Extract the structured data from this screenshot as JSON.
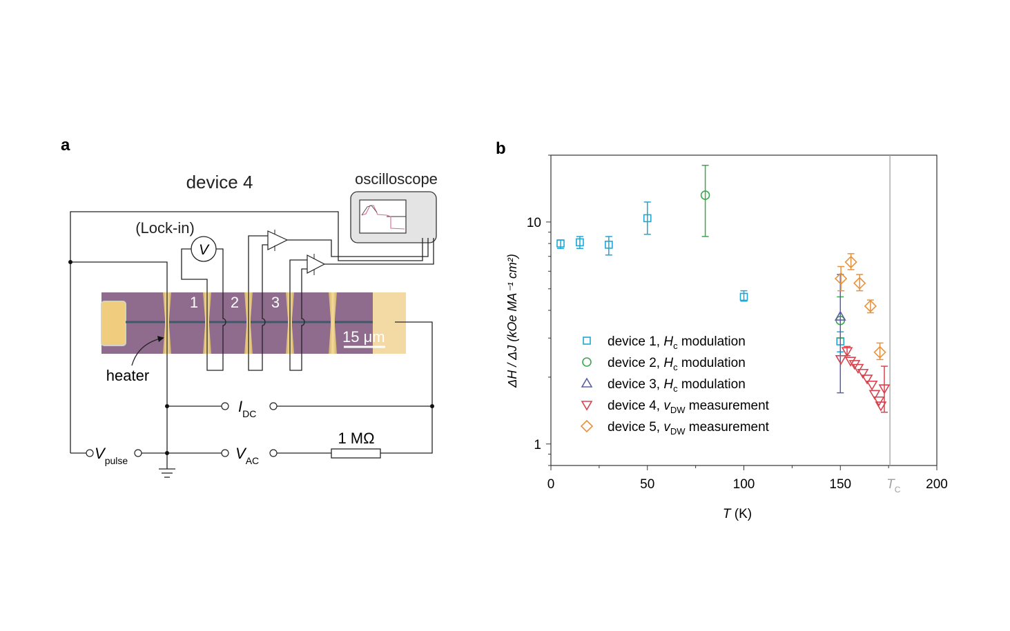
{
  "panel_a": {
    "label": "a",
    "title": "device 4",
    "lockin_label": "(Lock-in)",
    "voltmeter_symbol": "V",
    "oscilloscope_label": "oscilloscope",
    "contact_labels": [
      "1",
      "2",
      "3"
    ],
    "scale_bar_label": "15 μm",
    "heater_label": "heater",
    "idc": {
      "main": "I",
      "sub": "DC"
    },
    "vac": {
      "main": "V",
      "sub": "AC"
    },
    "vpulse": {
      "main": "V",
      "sub": "pulse"
    },
    "resistor_label": "1 MΩ",
    "colors": {
      "substrate": "#8f6b8d",
      "gold": "#f0cf8a"
    }
  },
  "chart_data": {
    "type": "scatter",
    "panel_label": "b",
    "xlabel": {
      "main": "T",
      "unit": " (K)"
    },
    "ylabel": "ΔH / ΔJ (kOe MA⁻¹ cm²)",
    "xlim": [
      0,
      200
    ],
    "ylim": [
      0.8,
      20
    ],
    "yscale": "log",
    "xticks": [
      0,
      50,
      100,
      150,
      200
    ],
    "xminor": [
      25,
      75,
      125,
      175
    ],
    "yticks": [
      1,
      10
    ],
    "tc": {
      "value": 175.7,
      "label_main": "T",
      "label_sub": "C",
      "color": "#a0a0a0"
    },
    "legend_position": "lower-left",
    "series": [
      {
        "name": "device 1, Hc modulation",
        "legend": {
          "prefix": "device 1, ",
          "var": "H",
          "sub": "c",
          "suffix": " modulation"
        },
        "marker": "square",
        "color": "#1ea6d6",
        "points": [
          [
            5,
            8.0,
            7.6,
            8.3
          ],
          [
            15,
            8.1,
            7.6,
            8.6
          ],
          [
            30,
            7.9,
            7.1,
            8.6
          ],
          [
            50,
            10.4,
            8.8,
            12.3
          ],
          [
            100,
            4.6,
            4.4,
            4.9
          ],
          [
            150,
            2.9,
            2.6,
            3.2
          ]
        ]
      },
      {
        "name": "device 2, Hc modulation",
        "legend": {
          "prefix": "device 2, ",
          "var": "H",
          "sub": "c",
          "suffix": " modulation"
        },
        "marker": "circle",
        "color": "#3aa94a",
        "points": [
          [
            80,
            13.2,
            8.6,
            18.0
          ],
          [
            150,
            3.6,
            3.0,
            4.6
          ]
        ]
      },
      {
        "name": "device 3, Hc modulation",
        "legend": {
          "prefix": "device 3, ",
          "var": "H",
          "sub": "c",
          "suffix": " modulation"
        },
        "marker": "triangle-up",
        "color": "#5b5ea6",
        "points": [
          [
            150,
            3.75,
            1.7,
            5.8
          ]
        ]
      },
      {
        "name": "device 4, vDW measurement",
        "legend": {
          "prefix": "device 4, ",
          "var": "v",
          "sub": "DW",
          "suffix": " measurement"
        },
        "marker": "triangle-down",
        "color": "#d8424e",
        "points": [
          [
            150.3,
            2.41,
            null,
            null
          ],
          [
            153.5,
            2.62,
            2.5,
            2.75
          ],
          [
            155.3,
            2.37,
            null,
            null
          ],
          [
            157.4,
            2.29,
            null,
            null
          ],
          [
            159.2,
            2.2,
            null,
            null
          ],
          [
            161.7,
            2.09,
            null,
            null
          ],
          [
            163.9,
            1.97,
            null,
            null
          ],
          [
            166.4,
            1.85,
            null,
            null
          ],
          [
            167.8,
            1.68,
            null,
            null
          ],
          [
            170,
            1.57,
            null,
            null
          ],
          [
            171,
            1.49,
            null,
            null
          ],
          [
            172.8,
            1.78,
            1.39,
            2.24
          ]
        ]
      },
      {
        "name": "device 5, vDW measurement",
        "legend": {
          "prefix": "device 5, ",
          "var": "v",
          "sub": "DW",
          "suffix": " measurement"
        },
        "marker": "diamond",
        "color": "#e8913a",
        "points": [
          [
            150.3,
            5.56,
            4.9,
            6.3
          ],
          [
            155.5,
            6.6,
            6.1,
            7.2
          ],
          [
            160,
            5.3,
            4.9,
            5.8
          ],
          [
            165.6,
            4.18,
            3.9,
            4.45
          ],
          [
            170.5,
            2.59,
            2.4,
            2.85
          ]
        ]
      }
    ]
  }
}
